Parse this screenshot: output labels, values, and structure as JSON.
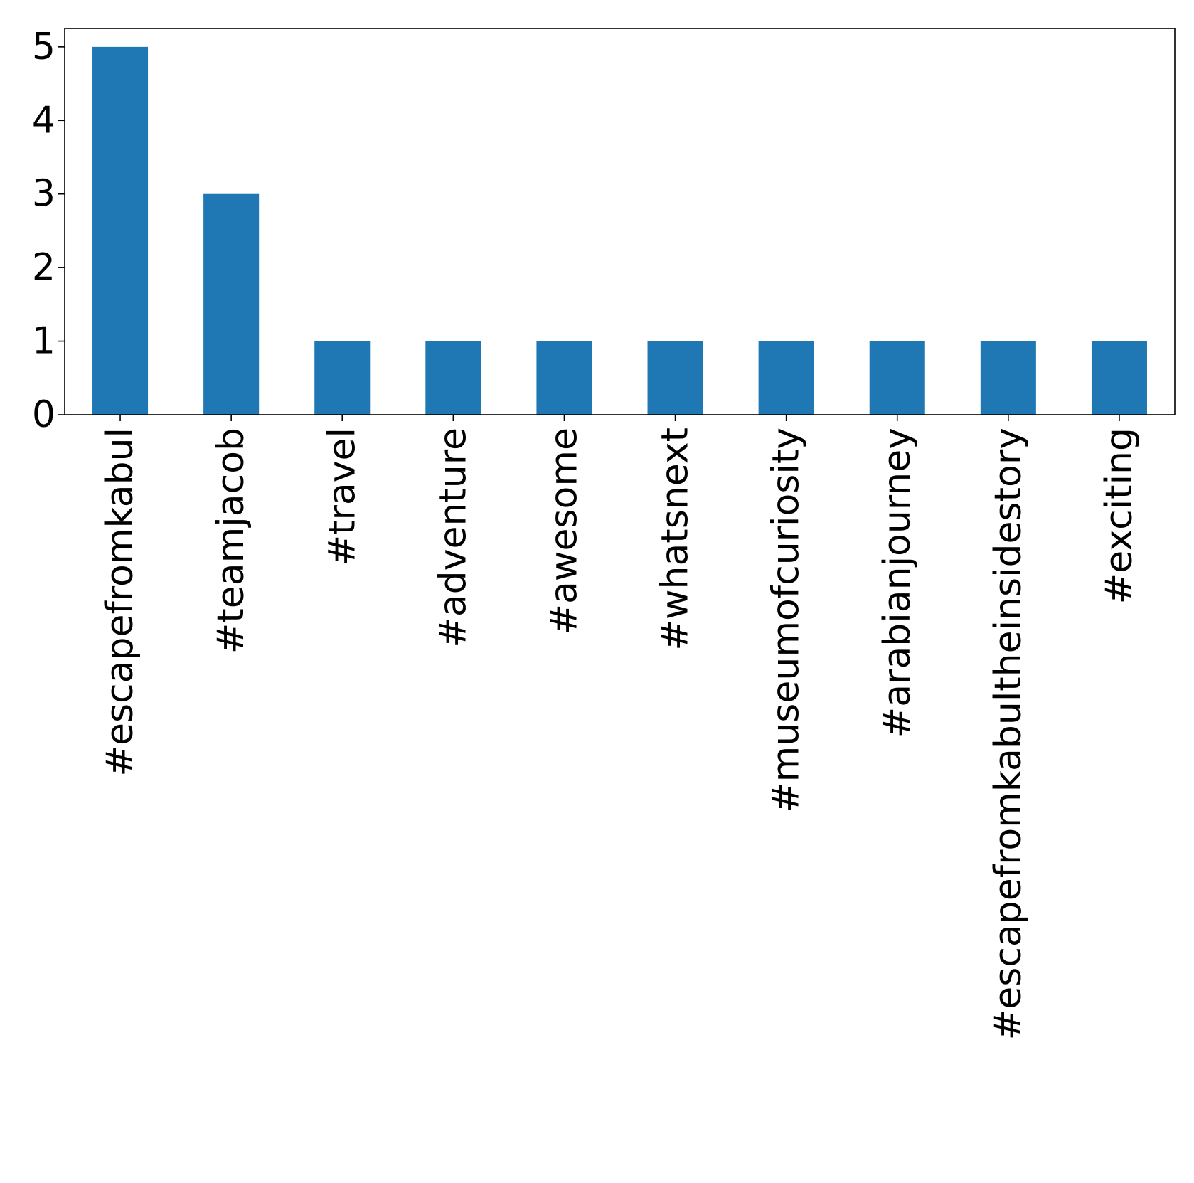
{
  "chart_data": {
    "type": "bar",
    "title": "",
    "xlabel": "",
    "ylabel": "",
    "categories": [
      "#escapefromkabul",
      "#teamjacob",
      "#travel",
      "#adventure",
      "#awesome",
      "#whatsnext",
      "#museumofcuriosity",
      "#arabianjourney",
      "#escapefromkabultheinsidestory",
      "#exciting"
    ],
    "values": [
      5,
      3,
      1,
      1,
      1,
      1,
      1,
      1,
      1,
      1
    ],
    "ylim": [
      0,
      5.25
    ],
    "yticks": [
      0,
      1,
      2,
      3,
      4,
      5
    ],
    "grid": false,
    "legend": "none",
    "bar_color": "#1f77b4"
  }
}
